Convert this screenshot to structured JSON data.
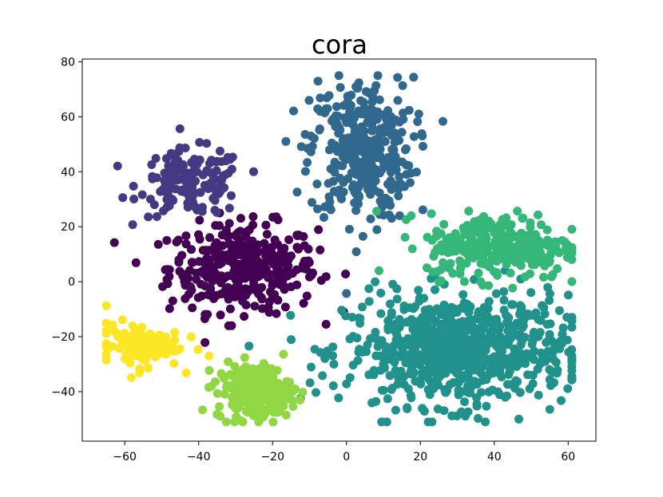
{
  "chart_data": {
    "type": "scatter",
    "title": "cora",
    "xlabel": "",
    "ylabel": "",
    "xlim": [
      -71.5,
      67.5
    ],
    "ylim": [
      -58,
      81
    ],
    "xticks": [
      -60,
      -40,
      -20,
      0,
      20,
      40,
      60
    ],
    "yticks": [
      -40,
      -20,
      0,
      20,
      40,
      60,
      80
    ],
    "xtick_labels": [
      "−60",
      "−40",
      "−20",
      "0",
      "20",
      "40",
      "60"
    ],
    "ytick_labels": [
      "−40",
      "−20",
      "0",
      "20",
      "40",
      "60",
      "80"
    ],
    "grid": false,
    "legend": "none",
    "colormap": "viridis",
    "clusters": [
      {
        "color": "#440154",
        "center": [
          -28,
          5
        ],
        "spread": [
          10,
          8
        ],
        "count": 360
      },
      {
        "color": "#443983",
        "center": [
          -42,
          36
        ],
        "spread": [
          7,
          6
        ],
        "count": 150
      },
      {
        "color": "#31688e",
        "center": [
          4,
          48
        ],
        "spread": [
          7,
          13
        ],
        "count": 340
      },
      {
        "color": "#21918c",
        "center": [
          30,
          -25
        ],
        "spread": [
          15,
          10
        ],
        "count": 720
      },
      {
        "color": "#35b779",
        "center": [
          42,
          13
        ],
        "spread": [
          10,
          6
        ],
        "count": 300
      },
      {
        "color": "#90d743",
        "center": [
          -25,
          -40
        ],
        "spread": [
          5,
          5
        ],
        "count": 240
      },
      {
        "color": "#fde725",
        "center": [
          -57,
          -23
        ],
        "spread": [
          6,
          4
        ],
        "count": 110
      }
    ]
  }
}
